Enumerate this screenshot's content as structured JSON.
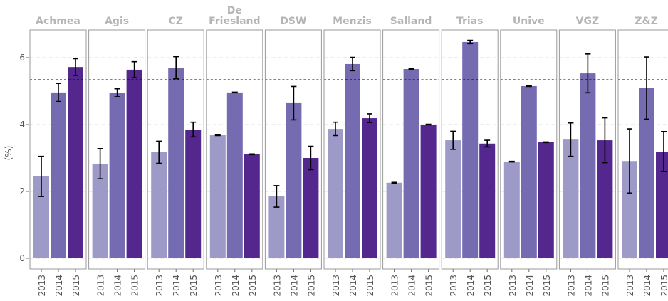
{
  "chart_data": {
    "type": "bar",
    "y_label": "(%)",
    "categories": [
      "2013",
      "2014",
      "2015"
    ],
    "colors": [
      "#9e9ac8",
      "#756bb1",
      "#54278f"
    ],
    "ylim": [
      -0.32,
      6.83
    ],
    "yticks": [
      0,
      2,
      4,
      6
    ],
    "grid": true,
    "reference_line": 5.34,
    "facets": [
      {
        "name": "Achmea",
        "values": [
          2.45,
          4.96,
          5.72
        ],
        "errors": [
          0.6,
          0.27,
          0.25
        ]
      },
      {
        "name": "Agis",
        "values": [
          2.83,
          4.95,
          5.64
        ],
        "errors": [
          0.45,
          0.12,
          0.24
        ]
      },
      {
        "name": "CZ",
        "values": [
          3.17,
          5.7,
          3.85
        ],
        "errors": [
          0.33,
          0.33,
          0.22
        ]
      },
      {
        "name": "De\nFriesland",
        "values": [
          3.68,
          4.96,
          3.11
        ],
        "errors": [
          0.01,
          0.01,
          0.01
        ]
      },
      {
        "name": "DSW",
        "values": [
          1.85,
          4.64,
          3.0
        ],
        "errors": [
          0.32,
          0.5,
          0.35
        ]
      },
      {
        "name": "Menzis",
        "values": [
          3.87,
          5.81,
          4.19
        ],
        "errors": [
          0.2,
          0.2,
          0.13
        ]
      },
      {
        "name": "Salland",
        "values": [
          2.26,
          5.66,
          4.0
        ],
        "errors": [
          0.01,
          0.01,
          0.01
        ]
      },
      {
        "name": "Trias",
        "values": [
          3.53,
          6.47,
          3.43
        ],
        "errors": [
          0.27,
          0.05,
          0.1
        ]
      },
      {
        "name": "Unive",
        "values": [
          2.89,
          5.15,
          3.47
        ],
        "errors": [
          0.01,
          0.01,
          0.01
        ]
      },
      {
        "name": "VGZ",
        "values": [
          3.55,
          5.53,
          3.53
        ],
        "errors": [
          0.5,
          0.58,
          0.67
        ]
      },
      {
        "name": "Z&Z",
        "values": [
          2.91,
          5.09,
          3.19
        ],
        "errors": [
          0.96,
          0.93,
          0.6
        ]
      }
    ]
  }
}
